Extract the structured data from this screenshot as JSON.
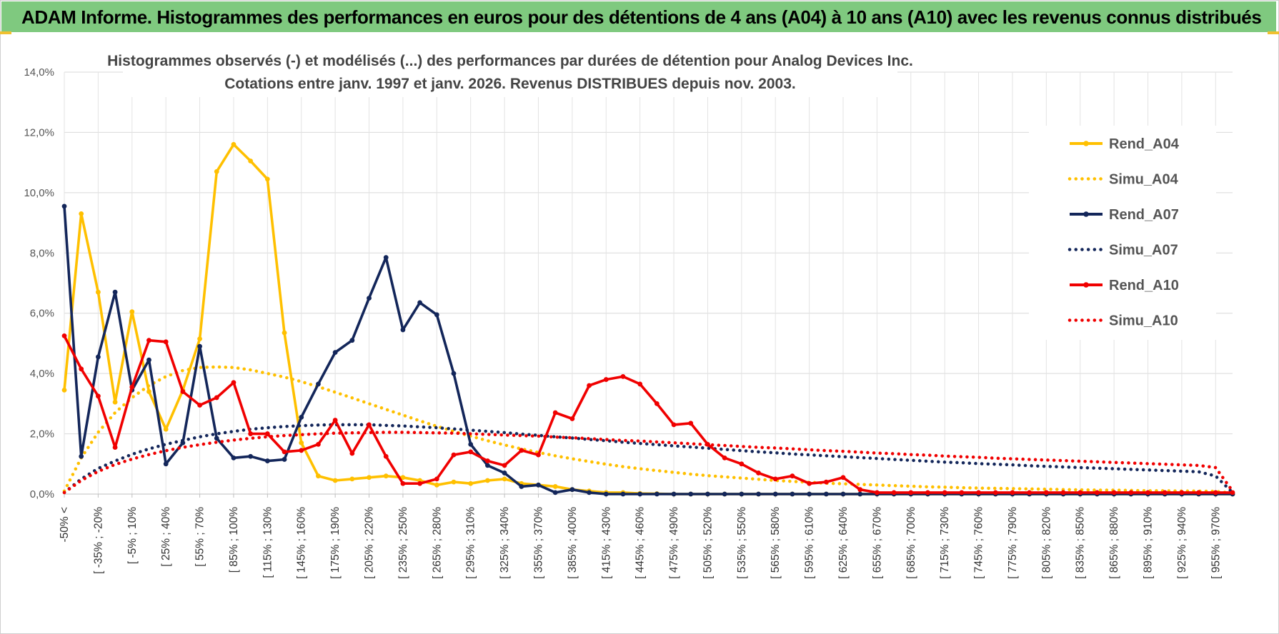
{
  "banner": {
    "title": "ADAM Informe. Histogrammes des performances en euros pour des détentions de 4 ans (A04) à 10 ans (A10) avec les revenus connus distribués"
  },
  "chart_data": {
    "type": "line",
    "title_line1": "Histogrammes observés (-) et modélisés (...) des performances par durées de détention pour Analog Devices Inc.",
    "title_line2": "Cotations entre janv. 1997 et janv. 2026. Revenus DISTRIBUES depuis nov. 2003.",
    "xlabel": "",
    "ylabel": "",
    "ylim": [
      0,
      14
    ],
    "y_ticks": [
      "0,0%",
      "2,0%",
      "4,0%",
      "6,0%",
      "8,0%",
      "10,0%",
      "12,0%",
      "14,0%"
    ],
    "x_tick_labels": [
      "-50% <",
      "[ -35% ; -20%",
      "[ -5% ; 10%",
      "[ 25% ; 40%",
      "[ 55% ; 70%",
      "[ 85% ; 100%",
      "[ 115% ; 130%",
      "[ 145% ; 160%",
      "[ 175% ; 190%",
      "[ 205% ; 220%",
      "[ 235% ; 250%",
      "[ 265% ; 280%",
      "[ 295% ; 310%",
      "[ 325% ; 340%",
      "[ 355% ; 370%",
      "[ 385% ; 400%",
      "[ 415% ; 430%",
      "[ 445% ; 460%",
      "[ 475% ; 490%",
      "[ 505% ; 520%",
      "[ 535% ; 550%",
      "[ 565% ; 580%",
      "[ 595% ; 610%",
      "[ 625% ; 640%",
      "[ 655% ; 670%",
      "[ 685% ; 700%",
      "[ 715% ; 730%",
      "[ 745% ; 760%",
      "[ 775% ; 790%",
      "[ 805% ; 820%",
      "[ 835% ; 850%",
      "[ 865% ; 880%",
      "[ 895% ; 910%",
      "[ 925% ; 940%",
      "[ 955% ; 970%"
    ],
    "n_categories": 70,
    "series": [
      {
        "name": "Rend_A04",
        "color": "#ffc000",
        "style": "solid",
        "values": [
          3.45,
          9.3,
          6.7,
          3.05,
          6.05,
          3.4,
          2.15,
          3.45,
          5.15,
          10.7,
          11.6,
          11.05,
          10.45,
          5.35,
          1.7,
          0.6,
          0.45,
          0.5,
          0.55,
          0.6,
          0.55,
          0.45,
          0.3,
          0.4,
          0.35,
          0.45,
          0.5,
          0.35,
          0.3,
          0.25,
          0.15,
          0.1,
          0.05,
          0.05,
          0.02,
          0.01,
          0,
          0,
          0,
          0,
          0,
          0,
          0,
          0,
          0,
          0,
          0,
          0,
          0,
          0,
          0,
          0,
          0,
          0,
          0,
          0,
          0,
          0,
          0,
          0,
          0,
          0,
          0,
          0,
          0,
          0,
          0,
          0,
          0,
          0
        ]
      },
      {
        "name": "Simu_A04",
        "color": "#ffc000",
        "style": "dotted",
        "values": [
          0.1,
          1.2,
          2.05,
          2.7,
          3.2,
          3.6,
          3.9,
          4.1,
          4.2,
          4.22,
          4.2,
          4.12,
          4.0,
          3.88,
          3.73,
          3.56,
          3.38,
          3.19,
          3.0,
          2.81,
          2.62,
          2.43,
          2.25,
          2.08,
          1.92,
          1.77,
          1.63,
          1.5,
          1.38,
          1.27,
          1.17,
          1.08,
          0.99,
          0.91,
          0.84,
          0.78,
          0.72,
          0.66,
          0.61,
          0.57,
          0.53,
          0.49,
          0.45,
          0.42,
          0.39,
          0.36,
          0.34,
          0.32,
          0.3,
          0.28,
          0.26,
          0.24,
          0.23,
          0.21,
          0.2,
          0.19,
          0.18,
          0.17,
          0.16,
          0.15,
          0.14,
          0.13,
          0.13,
          0.12,
          0.11,
          0.11,
          0.1,
          0.1,
          0.09,
          0.03
        ]
      },
      {
        "name": "Rend_A07",
        "color": "#13265a",
        "style": "solid",
        "values": [
          9.55,
          1.25,
          4.55,
          6.7,
          3.45,
          4.45,
          1.0,
          1.7,
          4.9,
          1.85,
          1.2,
          1.25,
          1.1,
          1.15,
          2.55,
          3.65,
          4.7,
          5.1,
          6.5,
          7.85,
          5.45,
          6.35,
          5.95,
          4.0,
          1.65,
          0.95,
          0.7,
          0.25,
          0.3,
          0.05,
          0.15,
          0.05,
          0,
          0,
          0,
          0,
          0,
          0,
          0,
          0,
          0,
          0,
          0,
          0,
          0,
          0,
          0,
          0,
          0,
          0,
          0,
          0,
          0,
          0,
          0,
          0,
          0,
          0,
          0,
          0,
          0,
          0,
          0,
          0,
          0,
          0,
          0,
          0,
          0,
          0
        ]
      },
      {
        "name": "Simu_A07",
        "color": "#13265a",
        "style": "dotted",
        "values": [
          0.05,
          0.5,
          0.85,
          1.1,
          1.32,
          1.5,
          1.65,
          1.78,
          1.9,
          2.0,
          2.08,
          2.15,
          2.2,
          2.24,
          2.27,
          2.29,
          2.3,
          2.3,
          2.3,
          2.28,
          2.26,
          2.23,
          2.2,
          2.16,
          2.12,
          2.08,
          2.04,
          1.99,
          1.95,
          1.9,
          1.86,
          1.81,
          1.77,
          1.72,
          1.68,
          1.64,
          1.6,
          1.56,
          1.52,
          1.48,
          1.44,
          1.4,
          1.37,
          1.33,
          1.3,
          1.27,
          1.24,
          1.21,
          1.18,
          1.15,
          1.12,
          1.09,
          1.06,
          1.04,
          1.01,
          0.99,
          0.97,
          0.94,
          0.92,
          0.9,
          0.88,
          0.86,
          0.84,
          0.82,
          0.8,
          0.78,
          0.76,
          0.74,
          0.6,
          0.05
        ]
      },
      {
        "name": "Rend_A10",
        "color": "#f00000",
        "style": "solid",
        "values": [
          5.25,
          4.15,
          3.25,
          1.55,
          3.55,
          5.1,
          5.05,
          3.4,
          2.95,
          3.2,
          3.7,
          2.0,
          2.0,
          1.4,
          1.45,
          1.65,
          2.45,
          1.35,
          2.3,
          1.25,
          0.35,
          0.35,
          0.5,
          1.3,
          1.4,
          1.1,
          0.95,
          1.45,
          1.3,
          2.7,
          2.5,
          3.6,
          3.8,
          3.9,
          3.65,
          3.0,
          2.3,
          2.35,
          1.65,
          1.2,
          1.0,
          0.7,
          0.5,
          0.6,
          0.35,
          0.4,
          0.55,
          0.15,
          0.05,
          0.05,
          0.05,
          0.05,
          0.05,
          0.05,
          0.05,
          0.05,
          0.05,
          0.05,
          0.05,
          0.05,
          0.05,
          0.05,
          0.05,
          0.05,
          0.05,
          0.05,
          0.05,
          0.05,
          0.05,
          0.05
        ]
      },
      {
        "name": "Simu_A10",
        "color": "#f00000",
        "style": "dotted",
        "values": [
          0.05,
          0.45,
          0.75,
          0.98,
          1.16,
          1.31,
          1.44,
          1.55,
          1.64,
          1.72,
          1.79,
          1.85,
          1.9,
          1.94,
          1.97,
          2.0,
          2.02,
          2.03,
          2.04,
          2.05,
          2.05,
          2.04,
          2.03,
          2.02,
          2.0,
          1.98,
          1.96,
          1.94,
          1.92,
          1.89,
          1.87,
          1.84,
          1.81,
          1.78,
          1.76,
          1.73,
          1.7,
          1.67,
          1.64,
          1.61,
          1.58,
          1.55,
          1.53,
          1.5,
          1.47,
          1.44,
          1.42,
          1.39,
          1.36,
          1.34,
          1.31,
          1.29,
          1.26,
          1.24,
          1.22,
          1.19,
          1.17,
          1.15,
          1.13,
          1.11,
          1.09,
          1.07,
          1.05,
          1.03,
          1.01,
          0.99,
          0.97,
          0.95,
          0.88,
          0.1
        ]
      }
    ],
    "legend": {
      "position": "right",
      "items": [
        "Rend_A04",
        "Simu_A04",
        "Rend_A07",
        "Simu_A07",
        "Rend_A10",
        "Simu_A10"
      ]
    }
  }
}
